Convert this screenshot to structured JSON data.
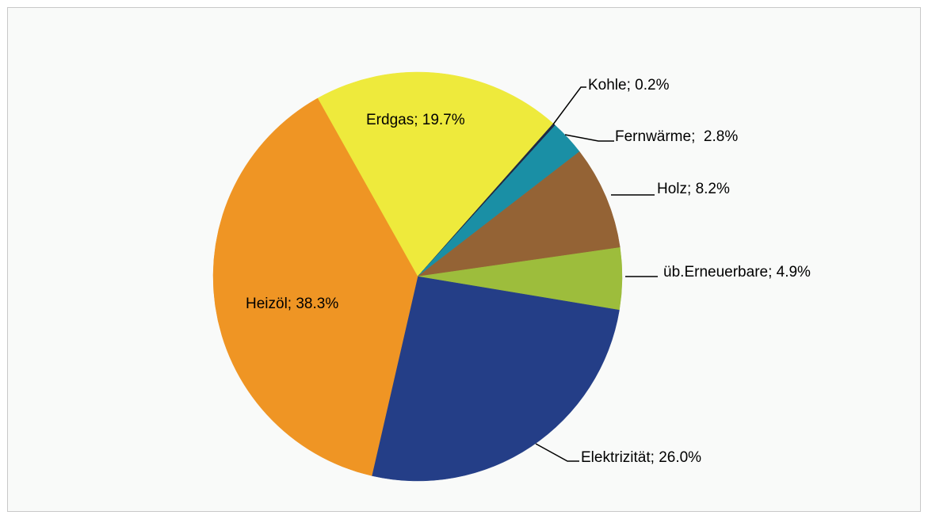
{
  "chart_data": {
    "type": "pie",
    "values": [
      19.7,
      0.2,
      2.8,
      8.2,
      4.9,
      26.0,
      38.3
    ],
    "value_labels": [
      "Erdgas; 19.7%",
      "Kohle; 0.2%",
      "Fernwärme;  2.8%",
      "Holz; 8.2%",
      "üb.Erneuerbare; 4.9%",
      "Elektrizität; 26.0%",
      "Heizöl; 38.3%"
    ],
    "colors": [
      "#eeea3c",
      "#1f2a44",
      "#1a8fa5",
      "#946335",
      "#9dbd3c",
      "#243e87",
      "#ef9524"
    ]
  }
}
